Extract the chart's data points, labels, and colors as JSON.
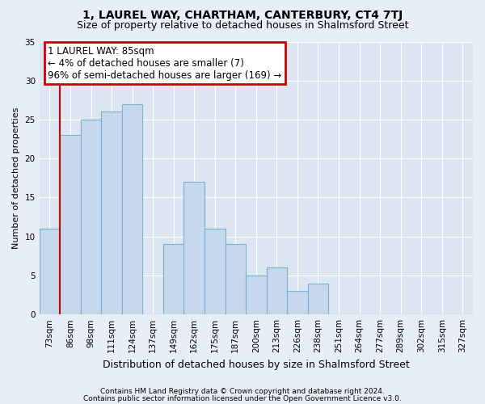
{
  "title1": "1, LAUREL WAY, CHARTHAM, CANTERBURY, CT4 7TJ",
  "title2": "Size of property relative to detached houses in Shalmsford Street",
  "xlabel": "Distribution of detached houses by size in Shalmsford Street",
  "ylabel": "Number of detached properties",
  "categories": [
    "73sqm",
    "86sqm",
    "98sqm",
    "111sqm",
    "124sqm",
    "137sqm",
    "149sqm",
    "162sqm",
    "175sqm",
    "187sqm",
    "200sqm",
    "213sqm",
    "226sqm",
    "238sqm",
    "251sqm",
    "264sqm",
    "277sqm",
    "289sqm",
    "302sqm",
    "315sqm",
    "327sqm"
  ],
  "values": [
    11,
    23,
    25,
    26,
    27,
    0,
    9,
    17,
    11,
    9,
    5,
    6,
    3,
    4,
    0,
    0,
    0,
    0,
    0,
    0,
    0
  ],
  "bar_color": "#c5d8ec",
  "bar_edge_color": "#7aafd4",
  "annotation_text": "1 LAUREL WAY: 85sqm\n← 4% of detached houses are smaller (7)\n96% of semi-detached houses are larger (169) →",
  "annotation_box_color": "white",
  "annotation_box_edge_color": "#cc0000",
  "vline_color": "#cc0000",
  "vline_x": 1,
  "ylim": [
    0,
    35
  ],
  "yticks": [
    0,
    5,
    10,
    15,
    20,
    25,
    30,
    35
  ],
  "footer1": "Contains HM Land Registry data © Crown copyright and database right 2024.",
  "footer2": "Contains public sector information licensed under the Open Government Licence v3.0.",
  "bg_color": "#e8eef5",
  "plot_bg_color": "#dce6f0",
  "grid_color": "#ffffff",
  "title1_fontsize": 10,
  "title2_fontsize": 9,
  "xlabel_fontsize": 9,
  "ylabel_fontsize": 8,
  "tick_fontsize": 7.5,
  "annot_fontsize": 8.5,
  "footer_fontsize": 6.5
}
